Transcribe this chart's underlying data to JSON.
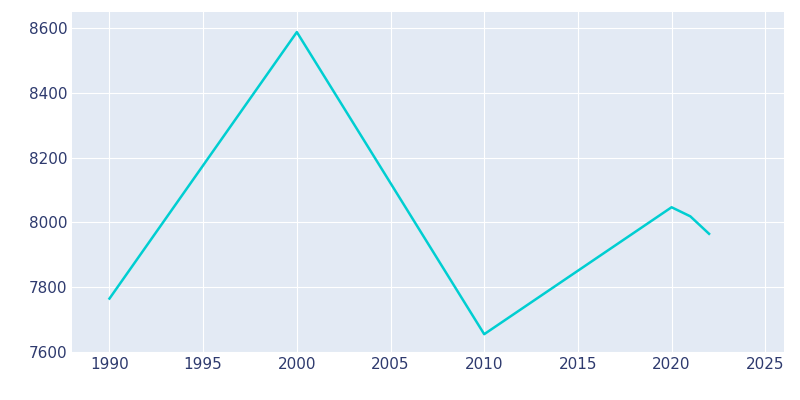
{
  "years": [
    1990,
    2000,
    2010,
    2020,
    2021,
    2022
  ],
  "population": [
    7765,
    8588,
    7655,
    8047,
    8019,
    7965
  ],
  "line_color": "#00CED1",
  "bg_color": "#ffffff",
  "plot_bg_color": "#E3EAF4",
  "grid_color": "#ffffff",
  "tick_color": "#2E3A6E",
  "xlim": [
    1988,
    2026
  ],
  "ylim": [
    7600,
    8650
  ],
  "xticks": [
    1990,
    1995,
    2000,
    2005,
    2010,
    2015,
    2020,
    2025
  ],
  "yticks": [
    7600,
    7800,
    8000,
    8200,
    8400,
    8600
  ],
  "linewidth": 1.8,
  "tick_fontsize": 11
}
